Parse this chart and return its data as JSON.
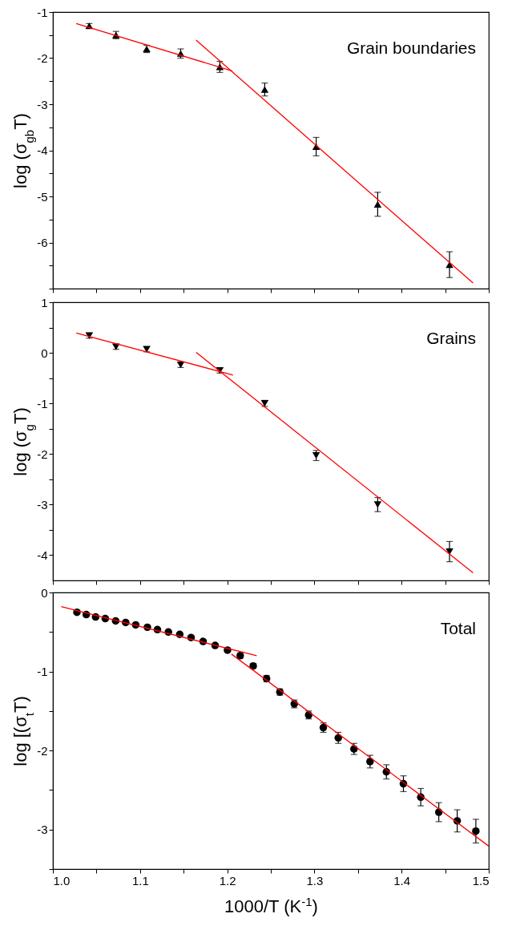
{
  "chart_data": [
    {
      "type": "scatter",
      "ylabel": "log (σ$_{gb}$T)",
      "annotations": [
        "Grain boundaries"
      ],
      "xlim": [
        1,
        1.5
      ],
      "xticks": [
        1,
        {
          "value": 1.05,
          "label": null
        },
        1.1,
        {
          "value": 1.15,
          "label": null
        },
        1.2,
        {
          "value": 1.25,
          "label": null
        },
        1.3,
        {
          "value": 1.35,
          "label": null
        },
        1.4,
        {
          "value": 1.45,
          "label": null
        },
        1.5
      ],
      "ylim": [
        -7,
        -1
      ],
      "yticks": [
        {
          "value": -7,
          "label": null
        },
        {
          "value": -6.5,
          "label": null
        },
        -6,
        {
          "value": -5.5,
          "label": null
        },
        -5,
        {
          "value": -4.5,
          "label": null
        },
        -4,
        {
          "value": -3.5,
          "label": null
        },
        -3,
        {
          "value": -2.5,
          "label": null
        },
        -2,
        {
          "value": -1.5,
          "label": null
        },
        -1
      ],
      "tick_labels": "y",
      "series": [
        {
          "type": "scatter",
          "marker": "triangle",
          "color": "#000000",
          "x": [
            1.0417,
            1.0724,
            1.1076,
            1.1466,
            1.1915,
            1.243,
            1.302,
            1.3726,
            1.455
          ],
          "values": [
            -1.3,
            -1.5,
            -1.8,
            -1.9,
            -2.19,
            -2.68,
            -3.92,
            -5.17,
            -6.48
          ],
          "errors": [
            0.05,
            0.08,
            0.08,
            0.1,
            0.12,
            0.14,
            0.2,
            0.26,
            0.28
          ]
        },
        {
          "type": "line",
          "color": "#ff0000",
          "x": [
            1.0268,
            1.206
          ],
          "values": [
            -1.25,
            -2.28
          ]
        },
        {
          "type": "line",
          "color": "#ff0000",
          "x": [
            1.1643,
            1.482
          ],
          "values": [
            -1.61,
            -6.88
          ]
        }
      ]
    },
    {
      "type": "scatter",
      "ylabel": "log (σ$_{g}$T)",
      "annotations": [
        "Grains"
      ],
      "xlim": [
        1,
        1.5
      ],
      "xticks": [
        1,
        {
          "value": 1.05,
          "label": null
        },
        1.1,
        {
          "value": 1.15,
          "label": null
        },
        1.2,
        {
          "value": 1.25,
          "label": null
        },
        1.3,
        {
          "value": 1.35,
          "label": null
        },
        1.4,
        {
          "value": 1.45,
          "label": null
        },
        1.5
      ],
      "ylim": [
        -4.5,
        1
      ],
      "yticks": [
        -4,
        {
          "value": -3.5,
          "label": null
        },
        -3,
        {
          "value": -2.5,
          "label": null
        },
        -2,
        {
          "value": -1.5,
          "label": null
        },
        -1,
        {
          "value": -0.5,
          "label": null
        },
        0,
        {
          "value": 0.5,
          "label": null
        },
        1
      ],
      "tick_labels": "y",
      "series": [
        {
          "type": "scatter",
          "marker": "triangle-down",
          "color": "#000000",
          "x": [
            1.0417,
            1.0724,
            1.1076,
            1.1466,
            1.1915,
            1.243,
            1.302,
            1.3726,
            1.455
          ],
          "values": [
            0.34,
            0.12,
            0.07,
            -0.24,
            -0.35,
            -1.0,
            -2.03,
            -3.0,
            -3.93
          ],
          "errors": [
            0.05,
            0.05,
            0.05,
            0.05,
            0.05,
            0.06,
            0.1,
            0.14,
            0.2
          ]
        },
        {
          "type": "line",
          "color": "#ff0000",
          "x": [
            1.0268,
            1.2066
          ],
          "values": [
            0.39,
            -0.44
          ]
        },
        {
          "type": "line",
          "color": "#ff0000",
          "x": [
            1.1643,
            1.482
          ],
          "values": [
            0.01,
            -4.35
          ]
        }
      ]
    },
    {
      "type": "scatter",
      "ylabel": "log [(σ$_{t}$T)",
      "xlabel": "1000/T (K$^{-1}$)",
      "annotations": [
        "Total"
      ],
      "xlim": [
        1,
        1.5
      ],
      "xticks": [
        {
          "value": 1,
          "label": "1.0"
        },
        {
          "value": 1.05,
          "label": null
        },
        1.1,
        {
          "value": 1.15,
          "label": null
        },
        1.2,
        {
          "value": 1.25,
          "label": null
        },
        1.3,
        {
          "value": 1.35,
          "label": null
        },
        1.4,
        {
          "value": 1.45,
          "label": null
        },
        1.5
      ],
      "ylim": [
        -3.5,
        0
      ],
      "yticks": [
        {
          "value": -3.5,
          "label": null
        },
        -3,
        {
          "value": -2.5,
          "label": null
        },
        -2,
        {
          "value": -1.5,
          "label": null
        },
        -1,
        {
          "value": -0.5,
          "label": null
        },
        0
      ],
      "series": [
        {
          "type": "scatter",
          "marker": "circle",
          "color": "#000000",
          "x": [
            1.0276,
            1.0383,
            1.049,
            1.0601,
            1.072,
            1.0835,
            1.095,
            1.1084,
            1.1199,
            1.1325,
            1.1455,
            1.1585,
            1.1723,
            1.1861,
            1.2003,
            1.2149,
            1.2298,
            1.2451,
            1.2604,
            1.2769,
            1.2934,
            1.3102,
            1.3274,
            1.3454,
            1.3638,
            1.3826,
            1.4021,
            1.422,
            1.4427,
            1.4638,
            1.4852
          ],
          "values": [
            -0.25,
            -0.28,
            -0.31,
            -0.33,
            -0.36,
            -0.38,
            -0.41,
            -0.44,
            -0.47,
            -0.5,
            -0.53,
            -0.57,
            -0.62,
            -0.67,
            -0.73,
            -0.8,
            -0.93,
            -1.09,
            -1.26,
            -1.41,
            -1.55,
            -1.71,
            -1.84,
            -1.98,
            -2.14,
            -2.27,
            -2.42,
            -2.59,
            -2.78,
            -2.89,
            -3.02
          ],
          "errors": [
            0.02,
            0.02,
            0.02,
            0.02,
            0.02,
            0.02,
            0.02,
            0.02,
            0.02,
            0.02,
            0.02,
            0.02,
            0.02,
            0.02,
            0.02,
            0.03,
            0.03,
            0.04,
            0.04,
            0.05,
            0.05,
            0.06,
            0.07,
            0.07,
            0.08,
            0.09,
            0.1,
            0.11,
            0.12,
            0.14,
            0.15
          ]
        },
        {
          "type": "line",
          "color": "#ff0000",
          "x": [
            1.0096,
            1.2338
          ],
          "values": [
            -0.18,
            -0.8
          ]
        },
        {
          "type": "line",
          "color": "#ff0000",
          "x": [
            1.2049,
            1.5
          ],
          "values": [
            -0.78,
            -3.21
          ]
        }
      ]
    }
  ]
}
